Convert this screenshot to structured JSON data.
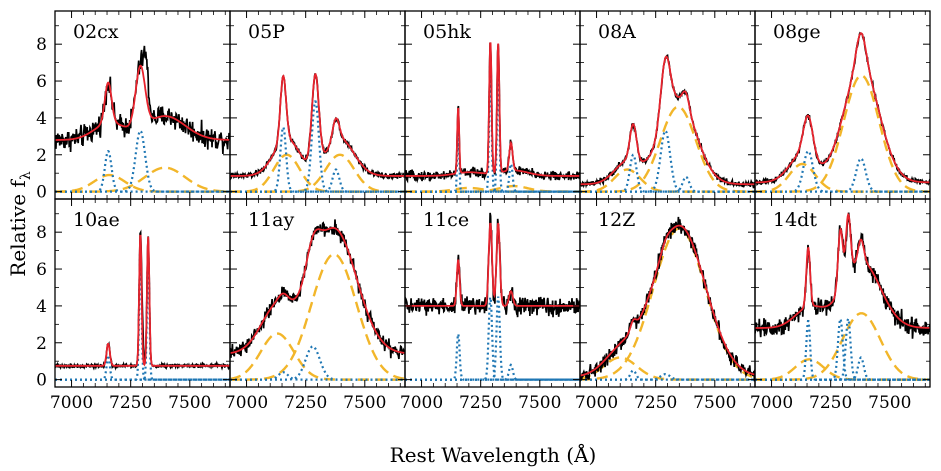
{
  "figure": {
    "xlabel": "Rest Wavelength (Å)",
    "ylabel": "Relative f",
    "ylabel_sub": "λ"
  },
  "colors": {
    "observed": "#000000",
    "total_fit": "#e8232d",
    "narrow_components": "#1f77b4",
    "broad_components": "#f2b62a"
  },
  "chart_data": {
    "type": "line",
    "layout": "2x5 small multiples, shared axes",
    "xlabel": "Rest Wavelength (Å)",
    "ylabel": "Relative fλ",
    "xlim": [
      6930,
      7670
    ],
    "ylim": [
      -0.4,
      9.8
    ],
    "xticks": [
      7000,
      7250,
      7500
    ],
    "xtick_labels": [
      "7000",
      "7250",
      "7500"
    ],
    "yticks": [
      0,
      2,
      4,
      6,
      8
    ],
    "ytick_labels": [
      "0",
      "2",
      "4",
      "6",
      "8"
    ],
    "series_styles": {
      "observed": "solid black",
      "total_fit": "solid red",
      "narrow": "dotted blue",
      "broad": "dashed yellow"
    },
    "panels": [
      {
        "label": "02cx",
        "continuum": 2.8,
        "noise": 0.45,
        "narrow": [
          [
            7155,
            2.2,
            14
          ],
          [
            7291,
            3.3,
            20
          ]
        ],
        "broad": [
          [
            7160,
            0.9,
            65
          ],
          [
            7395,
            1.3,
            85
          ]
        ],
        "spikes": [
          [
            7315,
            2.0,
            10
          ]
        ]
      },
      {
        "label": "05P",
        "continuum": 0.85,
        "noise": 0.12,
        "narrow": [
          [
            7155,
            3.5,
            12
          ],
          [
            7291,
            4.9,
            15
          ],
          [
            7378,
            1.2,
            14
          ]
        ],
        "broad": [
          [
            7170,
            2.0,
            55
          ],
          [
            7395,
            2.0,
            60
          ]
        ],
        "spikes": []
      },
      {
        "label": "05hk",
        "continuum": 0.85,
        "noise": 0.2,
        "narrow": [
          [
            7155,
            3.6,
            4
          ],
          [
            7291,
            7.2,
            5
          ],
          [
            7324,
            7.0,
            5
          ],
          [
            7378,
            1.5,
            7
          ]
        ],
        "broad": [
          [
            7200,
            0.2,
            60
          ],
          [
            7390,
            0.3,
            60
          ]
        ],
        "spikes": []
      },
      {
        "label": "08A",
        "continuum": 0.4,
        "noise": 0.12,
        "narrow": [
          [
            7155,
            2.0,
            14
          ],
          [
            7291,
            3.3,
            20
          ],
          [
            7378,
            0.8,
            14
          ]
        ],
        "broad": [
          [
            7130,
            1.2,
            55
          ],
          [
            7345,
            4.6,
            75
          ]
        ],
        "spikes": []
      },
      {
        "label": "08ge",
        "continuum": 0.5,
        "noise": 0.12,
        "narrow": [
          [
            7155,
            2.2,
            20
          ],
          [
            7378,
            1.8,
            20
          ]
        ],
        "broad": [
          [
            7130,
            1.5,
            55
          ],
          [
            7380,
            6.3,
            75
          ]
        ],
        "spikes": []
      },
      {
        "label": "10ae",
        "continuum": 0.75,
        "noise": 0.08,
        "narrow": [
          [
            7155,
            1.2,
            7
          ],
          [
            7291,
            7.2,
            5
          ],
          [
            7324,
            7.0,
            5
          ]
        ],
        "broad": [],
        "spikes": [
          [
            7300,
            1.5,
            4
          ]
        ]
      },
      {
        "label": "11ay",
        "continuum": 1.4,
        "noise": 0.3,
        "narrow": [
          [
            7155,
            0.4,
            20
          ],
          [
            7280,
            1.8,
            30
          ]
        ],
        "broad": [
          [
            7130,
            2.5,
            70
          ],
          [
            7370,
            6.8,
            95
          ]
        ],
        "spikes": []
      },
      {
        "label": "11ce",
        "continuum": 4.0,
        "noise": 0.4,
        "narrow": [
          [
            7155,
            2.5,
            6
          ],
          [
            7291,
            4.5,
            7
          ],
          [
            7324,
            4.5,
            7
          ],
          [
            7378,
            0.8,
            8
          ]
        ],
        "broad": [],
        "spikes": []
      },
      {
        "label": "12Z",
        "continuum": 0.15,
        "noise": 0.3,
        "narrow": [
          [
            7155,
            0.5,
            12
          ],
          [
            7291,
            0.3,
            20
          ]
        ],
        "broad": [
          [
            7100,
            1.2,
            70
          ],
          [
            7350,
            8.2,
            110
          ]
        ],
        "spikes": []
      },
      {
        "label": "14dt",
        "continuum": 2.8,
        "noise": 0.4,
        "narrow": [
          [
            7155,
            3.2,
            8
          ],
          [
            7291,
            3.3,
            10
          ],
          [
            7324,
            3.3,
            10
          ],
          [
            7378,
            1.2,
            12
          ]
        ],
        "broad": [
          [
            7160,
            1.1,
            60
          ],
          [
            7380,
            3.6,
            80
          ]
        ],
        "spikes": []
      }
    ]
  }
}
